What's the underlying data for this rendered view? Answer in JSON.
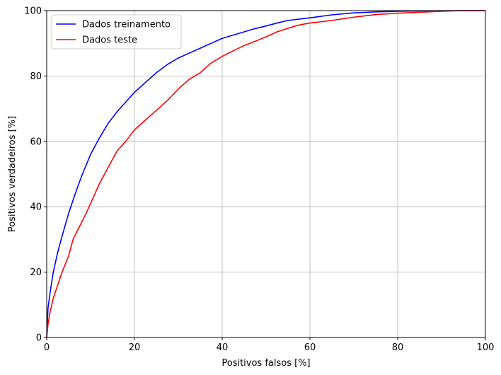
{
  "chart_data": {
    "type": "line",
    "xlabel": "Positivos falsos [%]",
    "ylabel": "Positivos verdadeiros [%]",
    "xlim": [
      0,
      100
    ],
    "ylim": [
      0,
      100
    ],
    "xticks": [
      0,
      20,
      40,
      60,
      80,
      100
    ],
    "yticks": [
      0,
      20,
      40,
      60,
      80,
      100
    ],
    "xtick_labels": [
      "0",
      "20",
      "40",
      "60",
      "80",
      "100"
    ],
    "ytick_labels": [
      "0",
      "20",
      "40",
      "60",
      "80",
      "100"
    ],
    "grid": true,
    "legend_position": "top-left",
    "series": [
      {
        "name": "Dados treinamento",
        "color": "#0000ff",
        "points": [
          [
            0,
            0
          ],
          [
            0.3,
            9
          ],
          [
            0.8,
            14
          ],
          [
            1.5,
            20
          ],
          [
            2.5,
            26
          ],
          [
            3.5,
            31
          ],
          [
            5,
            38
          ],
          [
            6.5,
            44
          ],
          [
            8,
            49.5
          ],
          [
            10,
            56
          ],
          [
            12,
            61
          ],
          [
            14,
            65.5
          ],
          [
            16,
            69
          ],
          [
            18,
            72
          ],
          [
            20,
            75
          ],
          [
            22.5,
            78
          ],
          [
            25,
            81
          ],
          [
            27.5,
            83.5
          ],
          [
            30,
            85.5
          ],
          [
            32.5,
            87
          ],
          [
            35,
            88.5
          ],
          [
            37.5,
            90
          ],
          [
            40,
            91.5
          ],
          [
            42.5,
            92.5
          ],
          [
            45,
            93.5
          ],
          [
            47.5,
            94.5
          ],
          [
            50,
            95.3
          ],
          [
            52.5,
            96.2
          ],
          [
            55,
            97
          ],
          [
            60,
            97.8
          ],
          [
            65,
            98.7
          ],
          [
            70,
            99.3
          ],
          [
            75,
            99.6
          ],
          [
            80,
            99.8
          ],
          [
            85,
            99.9
          ],
          [
            90,
            99.95
          ],
          [
            95,
            100
          ],
          [
            100,
            100
          ]
        ]
      },
      {
        "name": "Dados teste",
        "color": "#ff0000",
        "points": [
          [
            0,
            0
          ],
          [
            0.3,
            4
          ],
          [
            0.8,
            8
          ],
          [
            1.5,
            12
          ],
          [
            2.5,
            16
          ],
          [
            3.5,
            20
          ],
          [
            5,
            25
          ],
          [
            6,
            30
          ],
          [
            7.5,
            34
          ],
          [
            9,
            38
          ],
          [
            10,
            41
          ],
          [
            12,
            47
          ],
          [
            14,
            52
          ],
          [
            16,
            57
          ],
          [
            18,
            60
          ],
          [
            20,
            63.5
          ],
          [
            22.5,
            66.5
          ],
          [
            25,
            69.5
          ],
          [
            27.5,
            72.5
          ],
          [
            30,
            76
          ],
          [
            32.5,
            79
          ],
          [
            35,
            81
          ],
          [
            37.5,
            84
          ],
          [
            40,
            86
          ],
          [
            42.5,
            87.7
          ],
          [
            45,
            89.3
          ],
          [
            47.5,
            90.6
          ],
          [
            50,
            92
          ],
          [
            52.5,
            93.5
          ],
          [
            55,
            94.6
          ],
          [
            57.5,
            95.6
          ],
          [
            60,
            96.2
          ],
          [
            65,
            97
          ],
          [
            70,
            98
          ],
          [
            75,
            98.8
          ],
          [
            80,
            99.2
          ],
          [
            85,
            99.5
          ],
          [
            90,
            99.8
          ],
          [
            95,
            100
          ],
          [
            100,
            100
          ]
        ]
      }
    ]
  }
}
